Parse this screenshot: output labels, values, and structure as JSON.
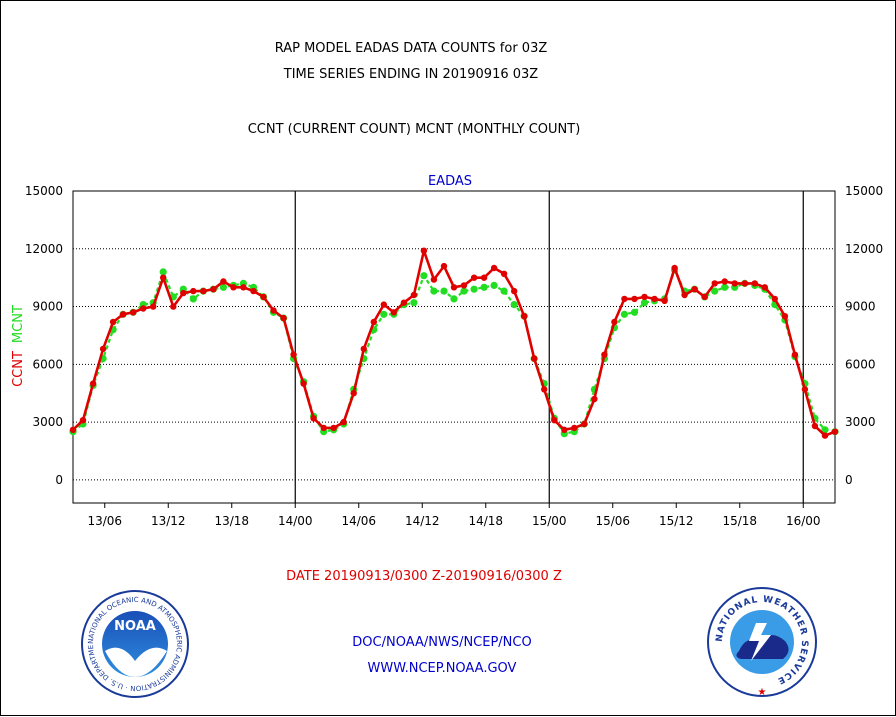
{
  "header": {
    "title_line1": "RAP MODEL EADAS DATA COUNTS for 03Z",
    "title_line2": "TIME SERIES ENDING IN 20190916 03Z",
    "subtitle": "CCNT (CURRENT COUNT) MCNT (MONTHLY COUNT)"
  },
  "footer": {
    "date_range": "DATE 20190913/0300 Z-20190916/0300 Z",
    "org_line": "DOC/NOAA/NWS/NCEP/NCO",
    "url_line": "WWW.NCEP.NOAA.GOV"
  },
  "logos": {
    "noaa_text": "NOAA",
    "noaa_ring": "NATIONAL OCEANIC AND ATMOSPHERIC ADMINISTRATION · U.S. DEPARTMENT OF COMMERCE",
    "nws_ring": "NATIONAL WEATHER SERVICE"
  },
  "colors": {
    "ccnt": "#e00000",
    "mcnt": "#22dd22",
    "title": "#000000",
    "label_blue": "#0000cc",
    "date_red": "#dd0000"
  },
  "chart_data": {
    "type": "line",
    "title": "EADAS",
    "ylabel_ccnt": "CCNT",
    "ylabel_mcnt": "MCNT",
    "ylim": [
      -1200,
      15000
    ],
    "yticks": [
      0,
      3000,
      6000,
      9000,
      12000,
      15000
    ],
    "ytick_labels": [
      "0",
      "3000",
      "6000",
      "9000",
      "12000",
      "15000"
    ],
    "x_hours_range": [
      0,
      72
    ],
    "xticks": [
      {
        "hour": 3,
        "label": "13/06"
      },
      {
        "hour": 9,
        "label": "13/12"
      },
      {
        "hour": 15,
        "label": "13/18"
      },
      {
        "hour": 21,
        "label": "14/00"
      },
      {
        "hour": 27,
        "label": "14/06"
      },
      {
        "hour": 33,
        "label": "14/12"
      },
      {
        "hour": 39,
        "label": "14/18"
      },
      {
        "hour": 45,
        "label": "15/00"
      },
      {
        "hour": 51,
        "label": "15/06"
      },
      {
        "hour": 57,
        "label": "15/12"
      },
      {
        "hour": 63,
        "label": "15/18"
      },
      {
        "hour": 69,
        "label": "16/00"
      }
    ],
    "day_boundaries_hours": [
      21,
      45,
      69
    ],
    "grid": "horizontal dotted",
    "series": [
      {
        "name": "CCNT",
        "color": "#e00000",
        "values": [
          2600,
          3100,
          5000,
          6800,
          8200,
          8600,
          8700,
          8900,
          9000,
          10500,
          9000,
          9700,
          9800,
          9800,
          9900,
          10300,
          10000,
          10000,
          9800,
          9500,
          8800,
          8400,
          6500,
          5000,
          3200,
          2700,
          2700,
          3000,
          4500,
          6800,
          8200,
          9100,
          8700,
          9200,
          9600,
          11900,
          10400,
          11100,
          10000,
          10100,
          10500,
          10500,
          11000,
          10700,
          9800,
          8500,
          6300,
          4700,
          3100,
          2600,
          2700,
          2900,
          4200,
          6500,
          8200,
          9400,
          9400,
          9500,
          9400,
          9300,
          11000,
          9600,
          9900,
          9500,
          10200,
          10300,
          10200,
          10200,
          10200,
          10000,
          9400,
          8500,
          6500,
          4700,
          2800,
          2300,
          2500
        ]
      },
      {
        "name": "MCNT",
        "color": "#22dd22",
        "values": [
          2500,
          2900,
          4900,
          6300,
          7800,
          8600,
          8700,
          9100,
          9200,
          10800,
          9500,
          9900,
          9400,
          9800,
          9900,
          10000,
          10100,
          10200,
          10000,
          9500,
          8700,
          8400,
          6300,
          5100,
          3300,
          2500,
          2600,
          2900,
          4700,
          6300,
          7800,
          8600,
          8600,
          9100,
          9200,
          10600,
          9800,
          9800,
          9400,
          9800,
          9900,
          10000,
          10100,
          9800,
          9100,
          8500,
          6300,
          5000,
          3200,
          2400,
          2500,
          2900,
          4700,
          6300,
          7900,
          8600,
          8700,
          9200,
          9300,
          9400,
          10900,
          9800,
          9900,
          9500,
          9800,
          10000,
          10000,
          10200,
          10100,
          9900,
          9100,
          8300,
          6400,
          5000,
          3200,
          2600,
          2500
        ]
      }
    ]
  }
}
